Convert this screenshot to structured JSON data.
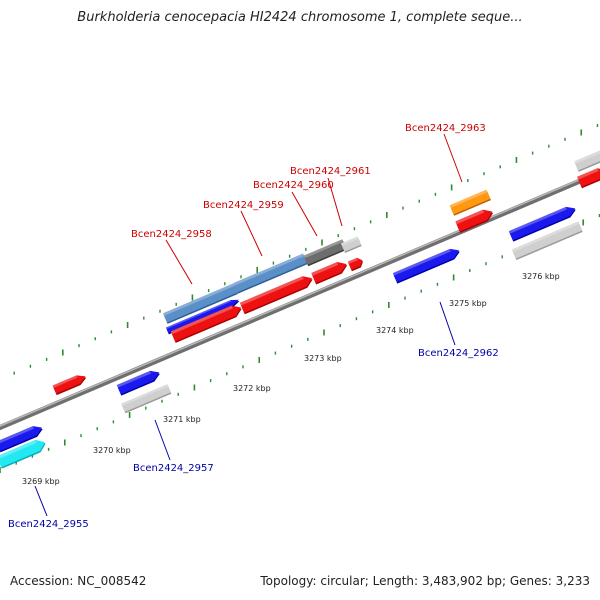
{
  "title": "Burkholderia cenocepacia HI2424 chromosome 1, complete seque...",
  "footer": {
    "accession": "Accession: NC_008542",
    "topology": "Topology: circular; Length: 3,483,902 bp; Genes: 3,233"
  },
  "colors": {
    "forward_label": "#cc0000",
    "reverse_label": "#0000aa",
    "backbone": "#888888",
    "tick": "#338833"
  },
  "scale_labels": [
    "3269 kbp",
    "3270 kbp",
    "3271 kbp",
    "3272 kbp",
    "3273 kbp",
    "3274 kbp",
    "3275 kbp",
    "3276 kbp"
  ],
  "gene_labels": {
    "forward": [
      "Bcen2424_2958",
      "Bcen2424_2959",
      "Bcen2424_2960",
      "Bcen2424_2961",
      "Bcen2424_2963"
    ],
    "reverse": [
      "Bcen2424_2955",
      "Bcen2424_2957",
      "Bcen2424_2962"
    ]
  }
}
